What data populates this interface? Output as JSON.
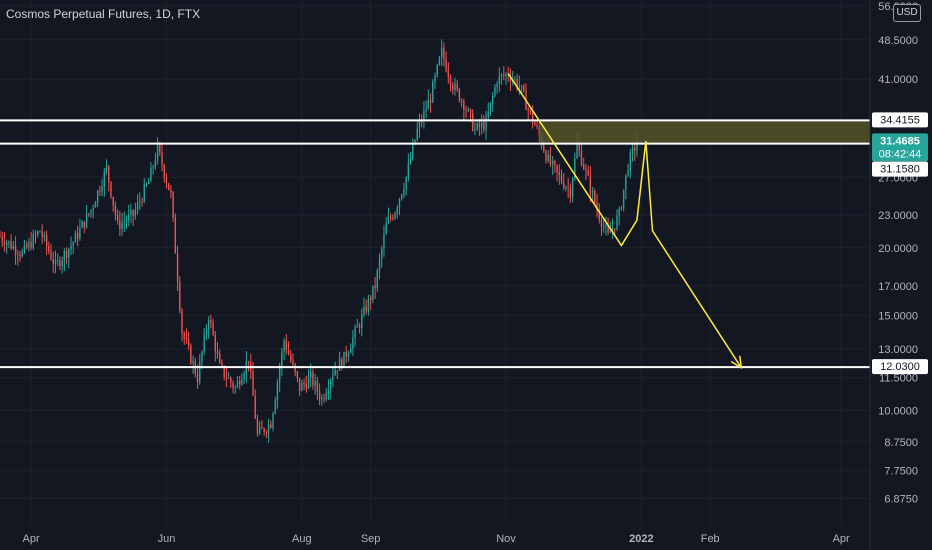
{
  "header": {
    "title": "Cosmos Perpetual Futures, 1D, FTX",
    "currency": "USD"
  },
  "colors": {
    "background": "#131722",
    "grid": "#1e222d",
    "bull": "#26a69a",
    "bear": "#ef5350",
    "drawing": "#ffeb3b",
    "zone": "#535326",
    "level_line": "#ffffff",
    "price_badge": "#26a69a"
  },
  "chart_data": {
    "type": "candlestick",
    "title": "Cosmos Perpetual Futures, 1D, FTX",
    "x_ticks": [
      "Apr",
      "Jun",
      "Aug",
      "Sep",
      "Nov",
      "2022",
      "Feb",
      "Apr"
    ],
    "x_tick_dates": [
      "2021-04-01",
      "2021-06-01",
      "2021-08-01",
      "2021-09-01",
      "2021-11-01",
      "2022-01-01",
      "2022-02-01",
      "2022-04-01"
    ],
    "y_scale": "log",
    "y_ticks": [
      "56.0000",
      "48.5000",
      "41.0000",
      "27.0000",
      "23.0000",
      "20.0000",
      "17.0000",
      "15.0000",
      "13.0000",
      "11.5000",
      "10.0000",
      "8.7500",
      "7.7500",
      "6.8750"
    ],
    "y_tick_values": [
      56,
      48.5,
      41,
      27,
      23,
      20,
      17,
      15,
      13,
      11.5,
      10,
      8.75,
      7.75,
      6.875
    ],
    "y_range": [
      6.3,
      56
    ],
    "x_range": [
      "2021-03-18",
      "2022-04-14"
    ],
    "price_path": [
      [
        "2021-03-18",
        21.0
      ],
      [
        "2021-03-28",
        19.5
      ],
      [
        "2021-04-05",
        21.5
      ],
      [
        "2021-04-12",
        18.5
      ],
      [
        "2021-04-20",
        20.5
      ],
      [
        "2021-04-28",
        23.5
      ],
      [
        "2021-05-05",
        28.0
      ],
      [
        "2021-05-10",
        22.0
      ],
      [
        "2021-05-17",
        23.0
      ],
      [
        "2021-05-24",
        26.5
      ],
      [
        "2021-05-28",
        30.5
      ],
      [
        "2021-06-03",
        25.0
      ],
      [
        "2021-06-08",
        14.0
      ],
      [
        "2021-06-15",
        11.5
      ],
      [
        "2021-06-20",
        15.0
      ],
      [
        "2021-06-25",
        12.0
      ],
      [
        "2021-07-02",
        11.0
      ],
      [
        "2021-07-08",
        12.5
      ],
      [
        "2021-07-12",
        9.0
      ],
      [
        "2021-07-18",
        9.5
      ],
      [
        "2021-07-24",
        13.5
      ],
      [
        "2021-07-31",
        11.0
      ],
      [
        "2021-08-05",
        11.5
      ],
      [
        "2021-08-10",
        10.5
      ],
      [
        "2021-08-15",
        11.8
      ],
      [
        "2021-08-20",
        12.5
      ],
      [
        "2021-08-27",
        14.5
      ],
      [
        "2021-09-03",
        17.0
      ],
      [
        "2021-09-08",
        22.0
      ],
      [
        "2021-09-12",
        23.5
      ],
      [
        "2021-09-17",
        27.0
      ],
      [
        "2021-09-22",
        33.0
      ],
      [
        "2021-09-28",
        38.0
      ],
      [
        "2021-10-03",
        46.0
      ],
      [
        "2021-10-08",
        40.0
      ],
      [
        "2021-10-13",
        37.0
      ],
      [
        "2021-10-18",
        33.0
      ],
      [
        "2021-10-23",
        34.0
      ],
      [
        "2021-10-28",
        41.0
      ],
      [
        "2021-11-02",
        42.0
      ],
      [
        "2021-11-07",
        40.0
      ],
      [
        "2021-11-11",
        36.0
      ],
      [
        "2021-11-15",
        33.0
      ],
      [
        "2021-11-20",
        29.0
      ],
      [
        "2021-11-25",
        27.0
      ],
      [
        "2021-11-30",
        25.5
      ],
      [
        "2021-12-03",
        31.0
      ],
      [
        "2021-12-07",
        27.5
      ],
      [
        "2021-12-12",
        23.5
      ],
      [
        "2021-12-17",
        21.0
      ],
      [
        "2021-12-22",
        23.0
      ],
      [
        "2021-12-26",
        28.5
      ],
      [
        "2021-12-30",
        31.47
      ]
    ],
    "horizontal_levels": [
      {
        "label": "34.4155",
        "value": 34.4155
      },
      {
        "label": "31.1580",
        "value": 31.158
      },
      {
        "label": "12.0300",
        "value": 12.03
      }
    ],
    "zone": {
      "top": 34.4155,
      "bottom": 31.158,
      "x_start": "2021-11-16",
      "x_end": "2022-04-14"
    },
    "last_price": {
      "value": "31.4685",
      "countdown": "08:42:44"
    },
    "projection": [
      [
        "2021-11-02",
        42.0
      ],
      [
        "2021-12-23",
        20.2
      ],
      [
        "2021-12-30",
        22.5
      ],
      [
        "2022-01-03",
        31.5
      ],
      [
        "2022-01-06",
        21.5
      ],
      [
        "2022-02-15",
        12.0
      ]
    ]
  }
}
